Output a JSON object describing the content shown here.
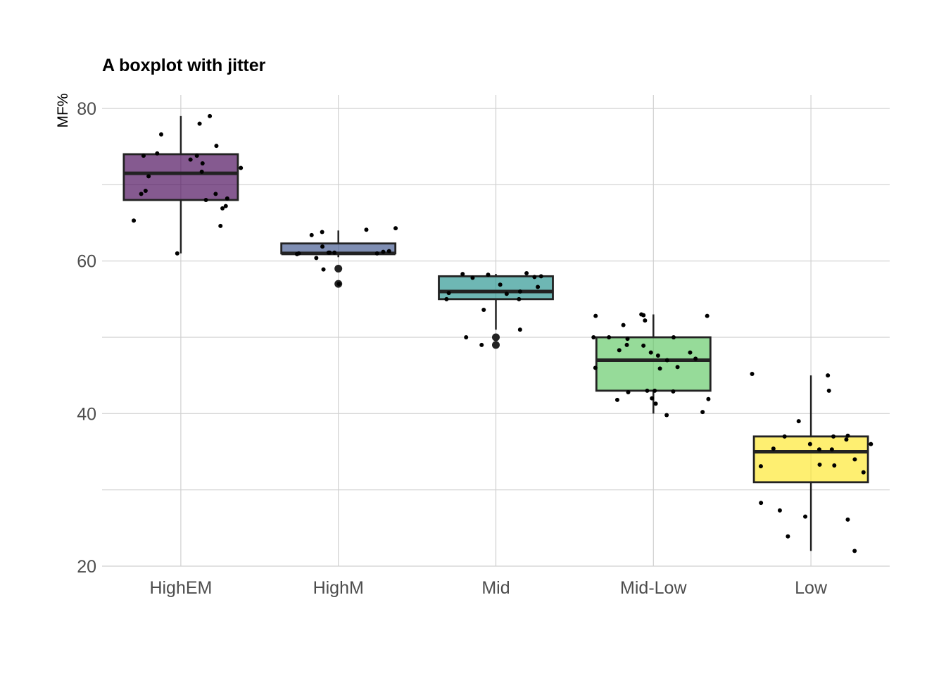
{
  "chart_data": {
    "type": "boxplot",
    "title": "A boxplot with jitter",
    "xlabel": "",
    "ylabel": "MF%",
    "ylim": [
      20,
      82
    ],
    "y_ticks": [
      20,
      40,
      60,
      80
    ],
    "grid": true,
    "categories": [
      "HighEM",
      "HighM",
      "Mid",
      "Mid-Low",
      "Low"
    ],
    "colors": [
      "#440154",
      "#3b528b",
      "#21908c",
      "#5dc863",
      "#fde725"
    ],
    "boxes": [
      {
        "category": "HighEM",
        "whisker_low": 61,
        "q1": 68,
        "median": 71.5,
        "q3": 74,
        "whisker_high": 79,
        "outliers": []
      },
      {
        "category": "HighM",
        "whisker_low": 60.5,
        "q1": 61,
        "median": 61,
        "q3": 62.3,
        "whisker_high": 64,
        "outliers": [
          59,
          57
        ]
      },
      {
        "category": "Mid",
        "whisker_low": 51,
        "q1": 55,
        "median": 56,
        "q3": 58,
        "whisker_high": 58.3,
        "outliers": [
          50,
          49
        ]
      },
      {
        "category": "Mid-Low",
        "whisker_low": 40,
        "q1": 43,
        "median": 47,
        "q3": 50,
        "whisker_high": 53,
        "outliers": []
      },
      {
        "category": "Low",
        "whisker_low": 22,
        "q1": 31,
        "median": 35,
        "q3": 37,
        "whisker_high": 45,
        "outliers": []
      }
    ],
    "points": [
      {
        "category": "HighEM",
        "values": [
          78,
          74.1,
          73.8,
          72.2,
          72.8,
          71.7,
          68.8,
          68.2,
          68,
          64.6,
          79,
          76.6,
          75.1,
          73.8,
          73.3,
          71.1,
          69.2,
          68.8,
          67.2,
          66.9,
          65.3,
          61
        ]
      },
      {
        "category": "HighM",
        "values": [
          64.1,
          63.8,
          63.4,
          61.9,
          61.3,
          61.2,
          61.1,
          61.1,
          61,
          61,
          60.9,
          60.4,
          58.9,
          57,
          64.3,
          61.1
        ]
      },
      {
        "category": "Mid",
        "values": [
          58.4,
          58.3,
          58.2,
          58,
          57.9,
          57.8,
          56.9,
          56.6,
          56,
          55.8,
          55.7,
          55,
          55,
          53.6,
          51,
          50,
          49
        ]
      },
      {
        "category": "Mid-Low",
        "values": [
          53,
          52.9,
          52.8,
          52.2,
          52.8,
          51.6,
          50,
          50,
          50,
          49.8,
          49,
          48.9,
          48.3,
          48,
          48,
          47.6,
          47.2,
          47,
          46.1,
          46,
          45.9,
          43,
          43,
          42.9,
          42.8,
          42,
          41.9,
          41.8,
          41.3,
          40.2,
          39.8
        ]
      },
      {
        "category": "Low",
        "values": [
          45.2,
          45,
          43,
          39,
          37.1,
          37,
          37,
          36.6,
          36,
          36,
          35.4,
          35.3,
          35.3,
          34,
          33.3,
          33.2,
          33.1,
          32.3,
          28.3,
          27.3,
          26.5,
          26.1,
          23.9,
          22
        ]
      }
    ]
  }
}
